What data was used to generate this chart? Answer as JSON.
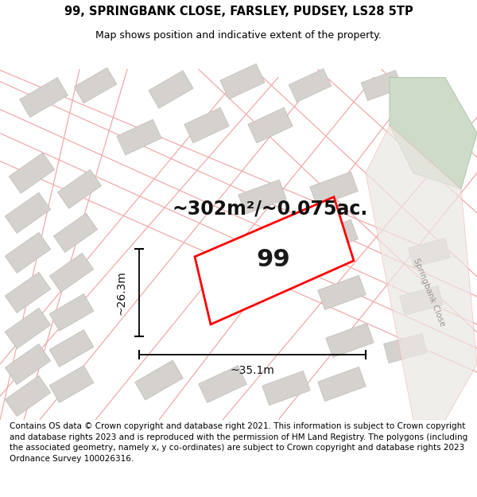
{
  "title_line1": "99, SPRINGBANK CLOSE, FARSLEY, PUDSEY, LS28 5TP",
  "title_line2": "Map shows position and indicative extent of the property.",
  "area_text": "~302m²/~0.075ac.",
  "width_label": "~35.1m",
  "height_label": "~26.3m",
  "property_number": "99",
  "road_label": "Springbank Close",
  "footer_text": "Contains OS data © Crown copyright and database right 2021. This information is subject to Crown copyright and database rights 2023 and is reproduced with the permission of HM Land Registry. The polygons (including the associated geometry, namely x, y co-ordinates) are subject to Crown copyright and database rights 2023 Ordnance Survey 100026316.",
  "map_bg": "#f2efec",
  "property_fill": "#ffffff",
  "property_edge": "#ff0000",
  "grid_line_color": "#f0aaaa",
  "green_patch_color": "#cddbc8",
  "title_fontsize": 10.5,
  "subtitle_fontsize": 9.0,
  "footer_fontsize": 7.5,
  "area_fontsize": 17,
  "number_fontsize": 22,
  "dim_fontsize": 10
}
